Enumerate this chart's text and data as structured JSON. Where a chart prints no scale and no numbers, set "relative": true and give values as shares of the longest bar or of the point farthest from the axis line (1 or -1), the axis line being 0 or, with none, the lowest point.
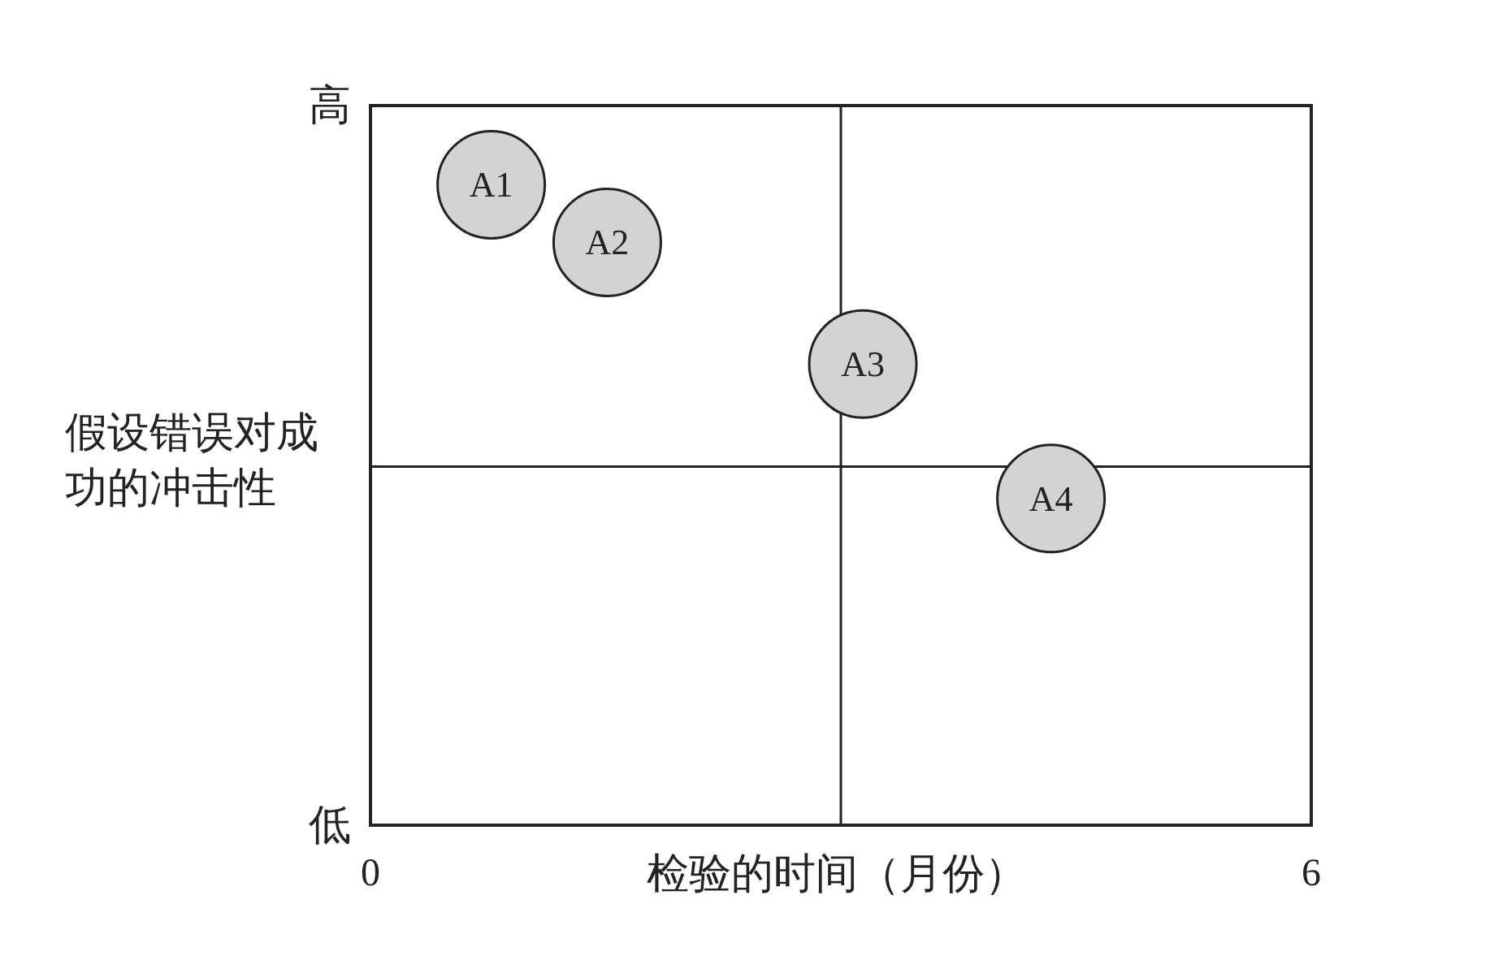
{
  "chart_data": {
    "type": "scatter",
    "x": [
      0.77,
      1.51,
      3.14,
      4.34
    ],
    "values": [
      1,
      0.91,
      0.72,
      0.51
    ],
    "relative": true,
    "color": "#d3d3d3",
    "marker": "circle",
    "xlim": [
      0,
      6
    ],
    "xticks": [
      0,
      6
    ],
    "xlabel": "检验的时间（月份）",
    "ylabel": "假设错误对成功的冲击性",
    "ref_lines": [
      {
        "axis": "x",
        "value": 3,
        "label": null
      },
      {
        "axis": "y",
        "value": 0.56,
        "label": null
      }
    ],
    "annotations": [
      "高",
      "低",
      {
        "text": "A1",
        "x": 0.77,
        "y": 1
      },
      {
        "text": "A2",
        "x": 1.51,
        "y": 0.91
      },
      {
        "text": "A3",
        "x": 3.14,
        "y": 0.72
      },
      {
        "text": "A4",
        "x": 4.34,
        "y": 0.51
      }
    ]
  }
}
